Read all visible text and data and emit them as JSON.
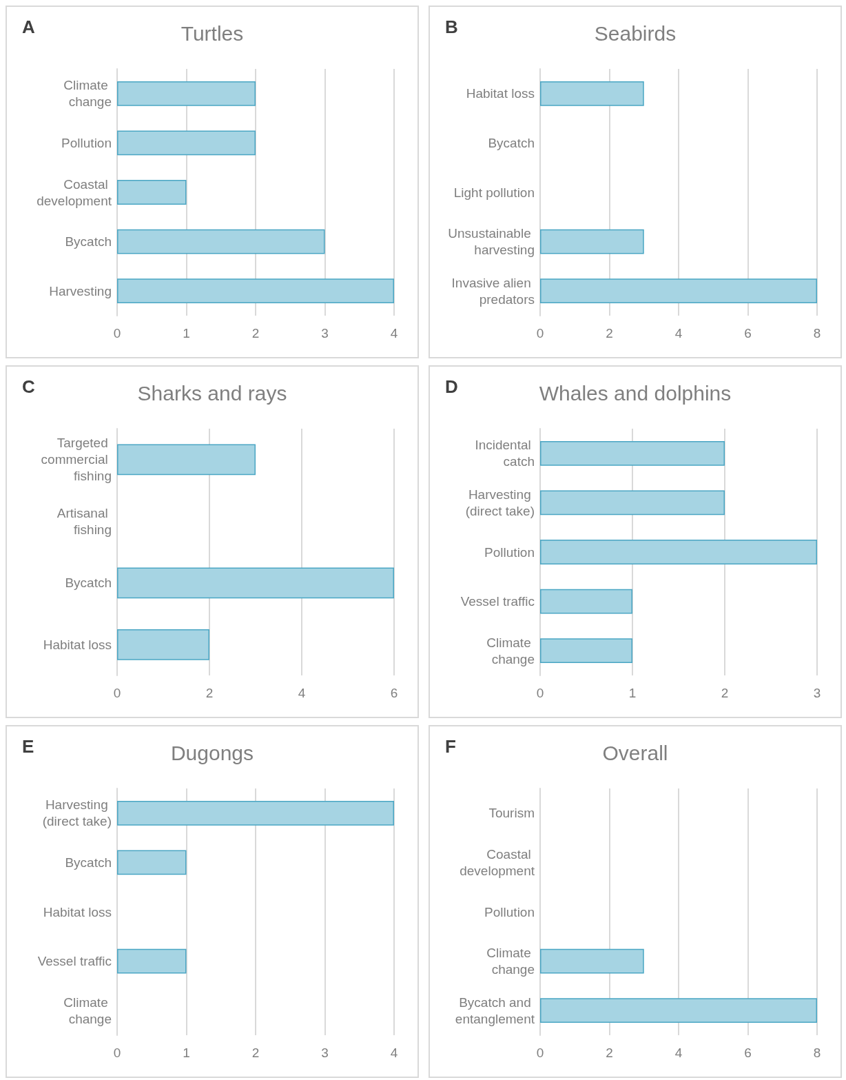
{
  "chart_data": [
    {
      "type": "bar",
      "orientation": "horizontal",
      "title": "Turtles",
      "annotations": [
        "A"
      ],
      "categories": [
        "Climate change",
        "Pollution",
        "Coastal development",
        "Bycatch",
        "Harvesting"
      ],
      "values": [
        2,
        2,
        1,
        3,
        4
      ],
      "color": "#a6d4e3",
      "xlim": [
        0,
        4
      ],
      "xticks": [
        0,
        1,
        2,
        3,
        4
      ],
      "grid": "x"
    },
    {
      "type": "bar",
      "orientation": "horizontal",
      "title": "Seabirds",
      "annotations": [
        "B"
      ],
      "categories": [
        "Habitat loss",
        "Bycatch",
        "Light pollution",
        "Unsustainable harvesting",
        "Invasive alien predators"
      ],
      "values": [
        3,
        0,
        0,
        3,
        8
      ],
      "color": "#a6d4e3",
      "xlim": [
        0,
        8
      ],
      "xticks": [
        0,
        2,
        4,
        6,
        8
      ],
      "grid": "x"
    },
    {
      "type": "bar",
      "orientation": "horizontal",
      "title": "Sharks and rays",
      "annotations": [
        "C"
      ],
      "categories": [
        "Targeted commercial fishing",
        "Artisanal fishing",
        "Bycatch",
        "Habitat loss"
      ],
      "values": [
        3,
        0,
        6,
        2
      ],
      "color": "#a6d4e3",
      "xlim": [
        0,
        6
      ],
      "xticks": [
        0,
        2,
        4,
        6
      ],
      "grid": "x"
    },
    {
      "type": "bar",
      "orientation": "horizontal",
      "title": "Whales and dolphins",
      "annotations": [
        "D"
      ],
      "categories": [
        "Incidental catch",
        "Harvesting (direct take)",
        "Pollution",
        "Vessel traffic",
        "Climate change"
      ],
      "values": [
        2,
        2,
        3,
        1,
        1
      ],
      "color": "#a6d4e3",
      "xlim": [
        0,
        3
      ],
      "xticks": [
        0,
        1,
        2,
        3
      ],
      "grid": "x"
    },
    {
      "type": "bar",
      "orientation": "horizontal",
      "title": "Dugongs",
      "annotations": [
        "E"
      ],
      "categories": [
        "Harvesting (direct take)",
        "Bycatch",
        "Habitat loss",
        "Vessel traffic",
        "Climate change"
      ],
      "values": [
        4,
        1,
        0,
        1,
        0
      ],
      "color": "#a6d4e3",
      "xlim": [
        0,
        4
      ],
      "xticks": [
        0,
        1,
        2,
        3,
        4
      ],
      "grid": "x"
    },
    {
      "type": "bar",
      "orientation": "horizontal",
      "title": "Overall",
      "annotations": [
        "F"
      ],
      "categories": [
        "Tourism",
        "Coastal development",
        "Pollution",
        "Climate change",
        "Bycatch and entanglement"
      ],
      "values": [
        0,
        0,
        0,
        3,
        8
      ],
      "color": "#a6d4e3",
      "xlim": [
        0,
        8
      ],
      "xticks": [
        0,
        2,
        4,
        6,
        8
      ],
      "grid": "x"
    }
  ]
}
